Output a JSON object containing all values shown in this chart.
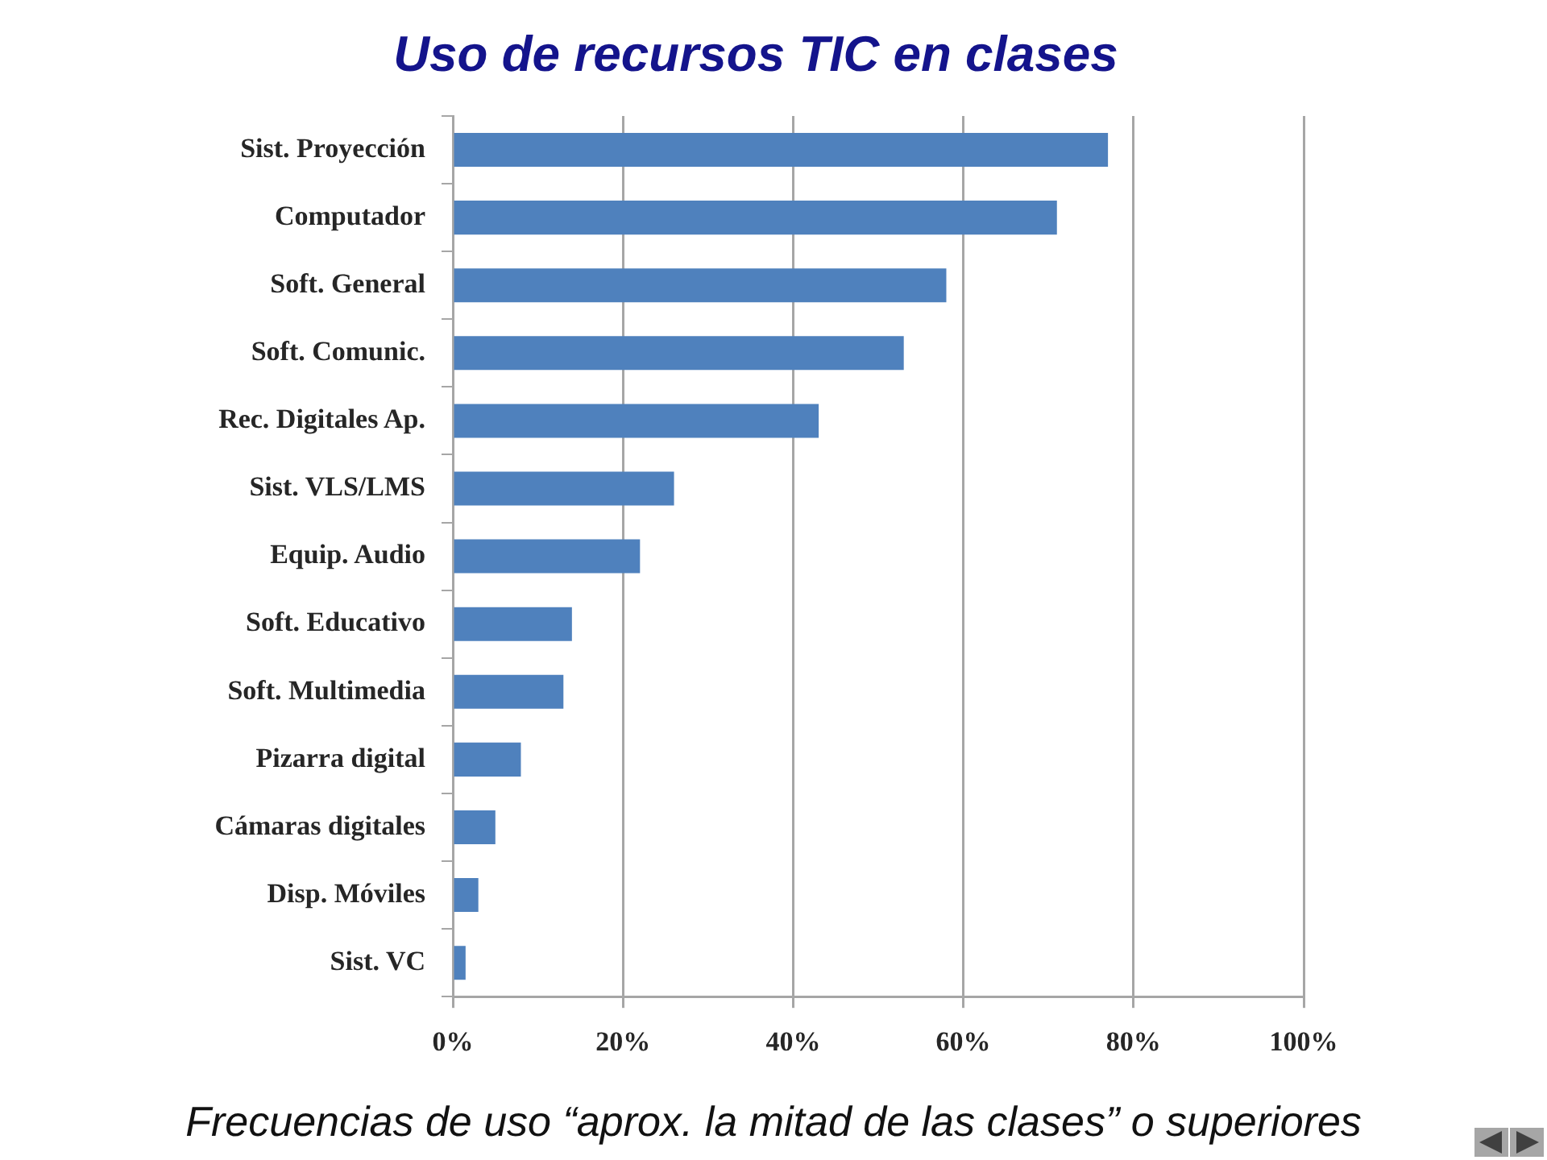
{
  "chart_data": {
    "type": "bar",
    "orientation": "horizontal",
    "title": "Uso de recursos TIC en clases",
    "categories": [
      "Sist. Proyección",
      "Computador",
      "Soft. General",
      "Soft. Comunic.",
      "Rec. Digitales Ap.",
      "Sist. VLS/LMS",
      "Equip. Audio",
      "Soft. Educativo",
      "Soft. Multimedia",
      "Pizarra digital",
      "Cámaras digitales",
      "Disp. Móviles",
      "Sist. VC"
    ],
    "values": [
      77,
      71,
      58,
      53,
      43,
      26,
      22,
      14,
      13,
      8,
      5,
      3,
      1.5
    ],
    "color": "#4f81bd",
    "xlim": [
      0,
      100
    ],
    "xticks": [
      {
        "value": 0,
        "label": "0%"
      },
      {
        "value": 20,
        "label": "20%"
      },
      {
        "value": 40,
        "label": "40%"
      },
      {
        "value": 60,
        "label": "60%"
      },
      {
        "value": 80,
        "label": "80%"
      },
      {
        "value": 100,
        "label": "100%"
      }
    ],
    "grid": "x",
    "annotations": [
      "Frecuencias de uso “aprox. la mitad de las clases” o superiores"
    ]
  }
}
